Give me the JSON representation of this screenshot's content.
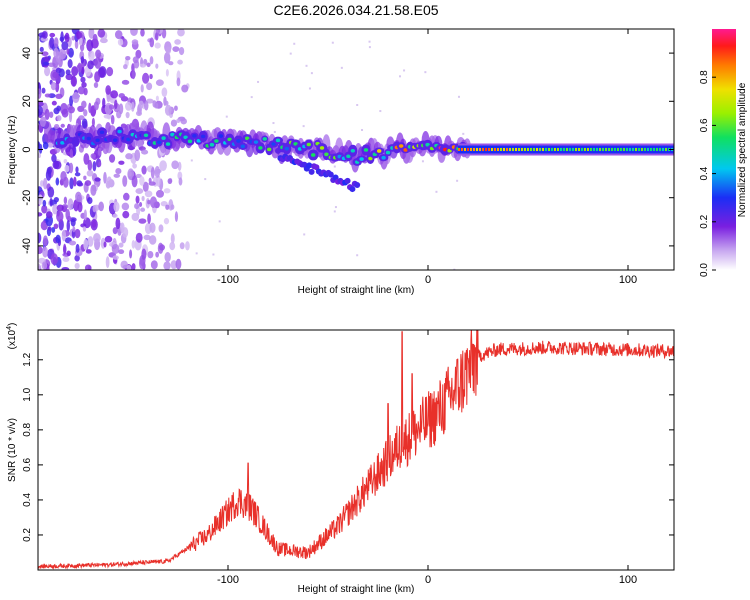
{
  "chart_data": [
    {
      "type": "heatmap",
      "title": "C2E6.2026.034.21.58.E05",
      "xlabel": "Height of straight line (km)",
      "ylabel": "Frequency (Hz)",
      "xlim": [
        -195,
        123
      ],
      "ylim": [
        -50,
        50
      ],
      "x_ticks": [
        -100,
        0,
        100
      ],
      "x_tick_labels": [
        "-100",
        "0",
        "100"
      ],
      "y_ticks": [
        -40,
        -20,
        0,
        20,
        40
      ],
      "y_tick_labels": [
        "-40",
        "-20",
        "0",
        "20",
        "40"
      ],
      "colorbar": {
        "label": "Normalized spectral amplitude",
        "range": [
          0,
          1
        ],
        "ticks": [
          0.0,
          0.2,
          0.4,
          0.6,
          0.8
        ],
        "tick_labels": [
          "0.0",
          "0.2",
          "0.4",
          "0.6",
          "0.8"
        ]
      },
      "ridge": {
        "description_points": [
          {
            "x": -185,
            "f": 5,
            "a": 0.35
          },
          {
            "x": -140,
            "f": 5,
            "a": 0.45
          },
          {
            "x": -110,
            "f": 4,
            "a": 0.5
          },
          {
            "x": -80,
            "f": 2,
            "a": 0.55
          },
          {
            "x": -55,
            "f": 0,
            "a": 0.6
          },
          {
            "x": -35,
            "f": -3,
            "a": 0.65
          },
          {
            "x": -15,
            "f": 0,
            "a": 0.75
          },
          {
            "x": 0,
            "f": 1,
            "a": 0.85
          },
          {
            "x": 15,
            "f": 0,
            "a": 0.9
          },
          {
            "x": 60,
            "f": 0,
            "a": 0.6
          },
          {
            "x": 120,
            "f": 0,
            "a": 0.55
          }
        ]
      }
    },
    {
      "type": "line",
      "title": "",
      "xlabel": "Height of straight line (km)",
      "ylabel": "SNR (10 * v/v)",
      "scale_label": "(x10",
      "scale_exp": "4",
      "scale_close": ")",
      "xlim": [
        -195,
        123
      ],
      "ylim": [
        0,
        1.37
      ],
      "x_ticks": [
        -100,
        0,
        100
      ],
      "x_tick_labels": [
        "-100",
        "0",
        "100"
      ],
      "y_ticks": [
        0.2,
        0.4,
        0.6,
        0.8,
        1.0,
        1.2
      ],
      "y_tick_labels": [
        "0.2",
        "0.4",
        "0.6",
        "0.8",
        "1.0",
        "1.2"
      ],
      "series": [
        {
          "name": "SNR",
          "color": "#e8302a",
          "envelope": [
            {
              "x": -195,
              "y": 0.02
            },
            {
              "x": -160,
              "y": 0.03
            },
            {
              "x": -130,
              "y": 0.05
            },
            {
              "x": -110,
              "y": 0.2
            },
            {
              "x": -95,
              "y": 0.4
            },
            {
              "x": -88,
              "y": 0.35
            },
            {
              "x": -75,
              "y": 0.12
            },
            {
              "x": -60,
              "y": 0.1
            },
            {
              "x": -45,
              "y": 0.25
            },
            {
              "x": -35,
              "y": 0.4
            },
            {
              "x": -25,
              "y": 0.55
            },
            {
              "x": -15,
              "y": 0.7
            },
            {
              "x": -5,
              "y": 0.8
            },
            {
              "x": 5,
              "y": 0.9
            },
            {
              "x": 15,
              "y": 1.05
            },
            {
              "x": 25,
              "y": 1.22
            },
            {
              "x": 35,
              "y": 1.26
            },
            {
              "x": 60,
              "y": 1.27
            },
            {
              "x": 123,
              "y": 1.25
            }
          ],
          "peaks": [
            {
              "x": -90,
              "y": 0.61
            },
            {
              "x": -13,
              "y": 1.36
            },
            {
              "x": -20,
              "y": 0.95
            },
            {
              "x": -8,
              "y": 1.12
            }
          ]
        }
      ]
    }
  ]
}
